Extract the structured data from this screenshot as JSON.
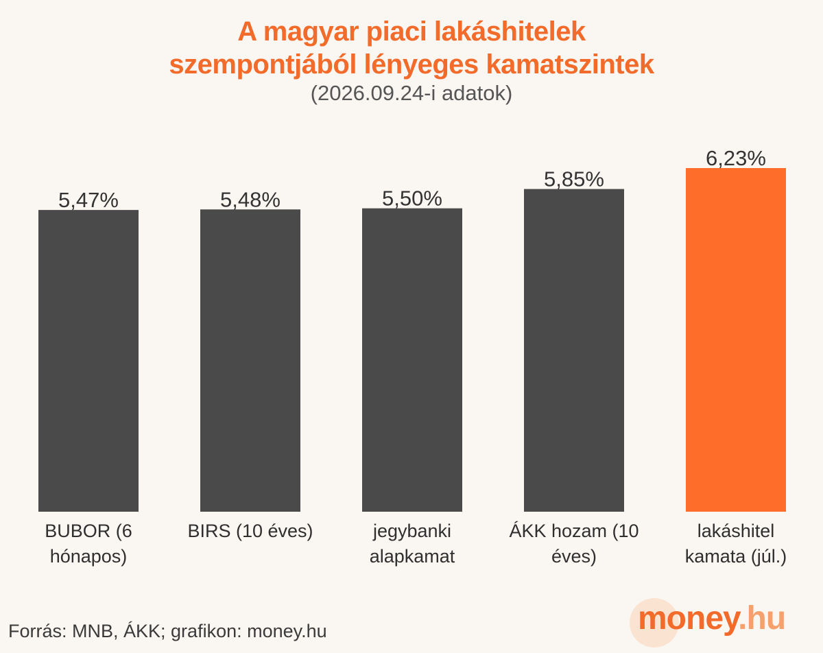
{
  "header": {
    "title_line1": "A magyar piaci lakáshitelek",
    "title_line2": "szempontjából lényeges kamatszintek",
    "subtitle": "(2026.09.24-i adatok)"
  },
  "chart_data": {
    "type": "bar",
    "title": "A magyar piaci lakáshitelek szempontjából lényeges kamatszintek",
    "subtitle": "(2026.09.24-i adatok)",
    "categories": [
      [
        "BUBOR (6",
        "hónapos)"
      ],
      [
        "BIRS (10 éves)"
      ],
      [
        "jegybanki",
        "alapkamat"
      ],
      [
        "ÁKK hozam (10",
        "éves)"
      ],
      [
        "lakáshitel",
        "kamata (júl.)"
      ]
    ],
    "values": [
      5.47,
      5.48,
      5.5,
      5.85,
      6.23
    ],
    "value_labels": [
      "5,47%",
      "5,48%",
      "5,50%",
      "5,85%",
      "6,23%"
    ],
    "bar_colors": [
      "#4a4a4a",
      "#4a4a4a",
      "#4a4a4a",
      "#4a4a4a",
      "#ff6d2a"
    ],
    "ylim": [
      0,
      6.23
    ],
    "xlabel": "",
    "ylabel": "",
    "grid": false,
    "legend": "none"
  },
  "footer": {
    "source": "Forrás: MNB, ÁKK; grafikon: money.hu"
  },
  "logo": {
    "main": "money",
    "tld": ".hu"
  },
  "colors": {
    "accent": "#f26b2a",
    "bar_dark": "#4a4a4a",
    "bar_highlight": "#ff6d2a",
    "background": "#faf6f1"
  }
}
